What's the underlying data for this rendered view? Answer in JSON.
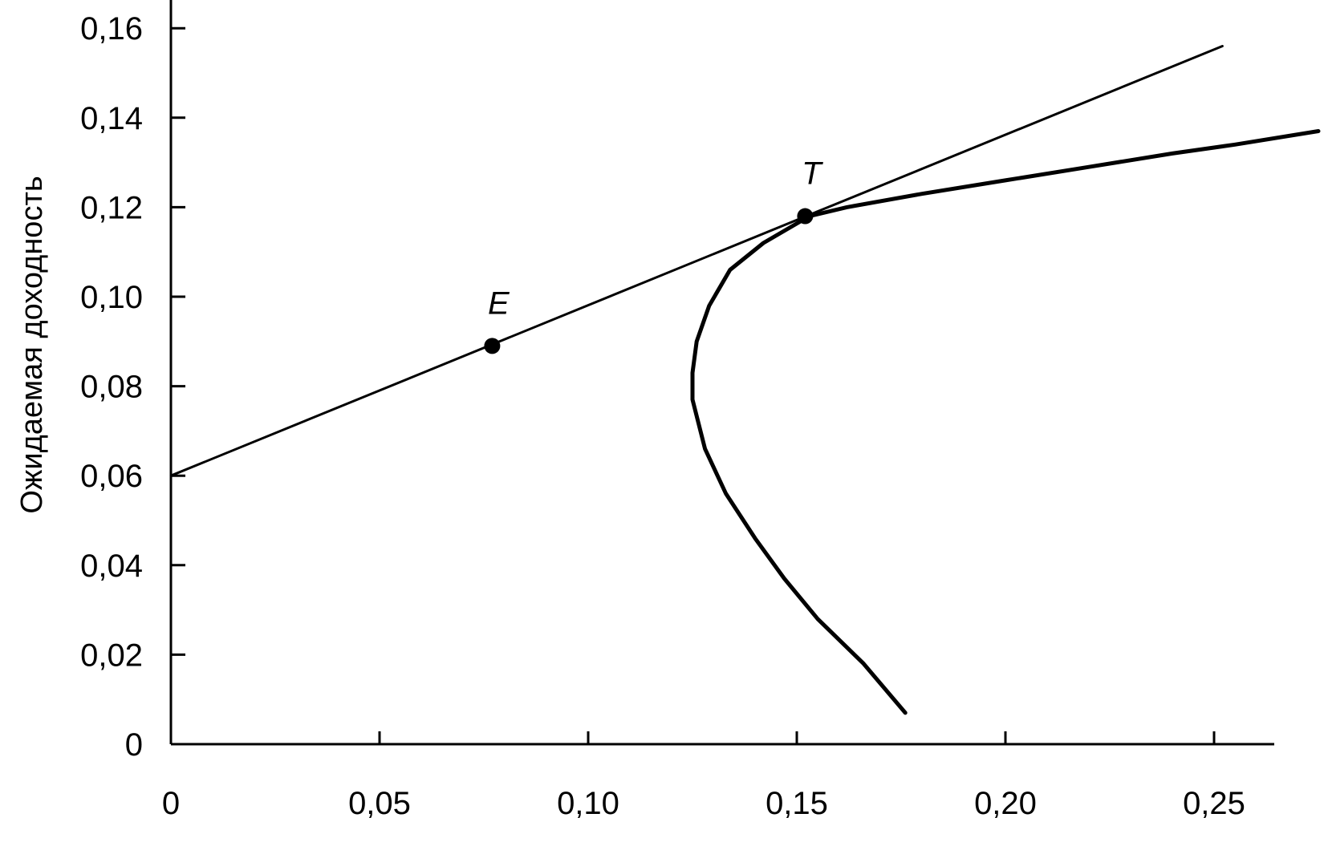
{
  "chart_data": {
    "type": "line",
    "title": "",
    "xlabel": "",
    "ylabel": "Ожидаемая доходность",
    "xlim": [
      0,
      0.27
    ],
    "ylim": [
      0,
      0.16
    ],
    "x_ticks": [
      {
        "value": 0,
        "label": "0"
      },
      {
        "value": 0.05,
        "label": "0,05"
      },
      {
        "value": 0.1,
        "label": "0,10"
      },
      {
        "value": 0.15,
        "label": "0,15"
      },
      {
        "value": 0.2,
        "label": "0,20"
      },
      {
        "value": 0.25,
        "label": "0,25"
      }
    ],
    "y_ticks": [
      {
        "value": 0,
        "label": "0"
      },
      {
        "value": 0.02,
        "label": "0,02"
      },
      {
        "value": 0.04,
        "label": "0,04"
      },
      {
        "value": 0.06,
        "label": "0,06"
      },
      {
        "value": 0.08,
        "label": "0,08"
      },
      {
        "value": 0.1,
        "label": "0,10"
      },
      {
        "value": 0.12,
        "label": "0,12"
      },
      {
        "value": 0.14,
        "label": "0,14"
      },
      {
        "value": 0.16,
        "label": "0,16"
      }
    ],
    "grid": false,
    "series": [
      {
        "kind": "capital-market-line",
        "points": [
          [
            0,
            0.06
          ],
          [
            0.252,
            0.156
          ]
        ]
      },
      {
        "kind": "efficient-frontier",
        "points": [
          [
            0.176,
            0.007
          ],
          [
            0.166,
            0.018
          ],
          [
            0.155,
            0.028
          ],
          [
            0.147,
            0.037
          ],
          [
            0.14,
            0.046
          ],
          [
            0.133,
            0.056
          ],
          [
            0.128,
            0.066
          ],
          [
            0.125,
            0.077
          ],
          [
            0.125,
            0.083
          ],
          [
            0.126,
            0.09
          ],
          [
            0.129,
            0.098
          ],
          [
            0.134,
            0.106
          ],
          [
            0.142,
            0.112
          ],
          [
            0.153,
            0.118
          ],
          [
            0.162,
            0.12
          ],
          [
            0.18,
            0.123
          ],
          [
            0.2,
            0.126
          ],
          [
            0.22,
            0.129
          ],
          [
            0.24,
            0.132
          ],
          [
            0.255,
            0.134
          ],
          [
            0.275,
            0.137
          ]
        ]
      }
    ],
    "points": [
      {
        "label": "E",
        "x": 0.077,
        "y": 0.089
      },
      {
        "label": "T",
        "x": 0.152,
        "y": 0.118
      }
    ]
  }
}
